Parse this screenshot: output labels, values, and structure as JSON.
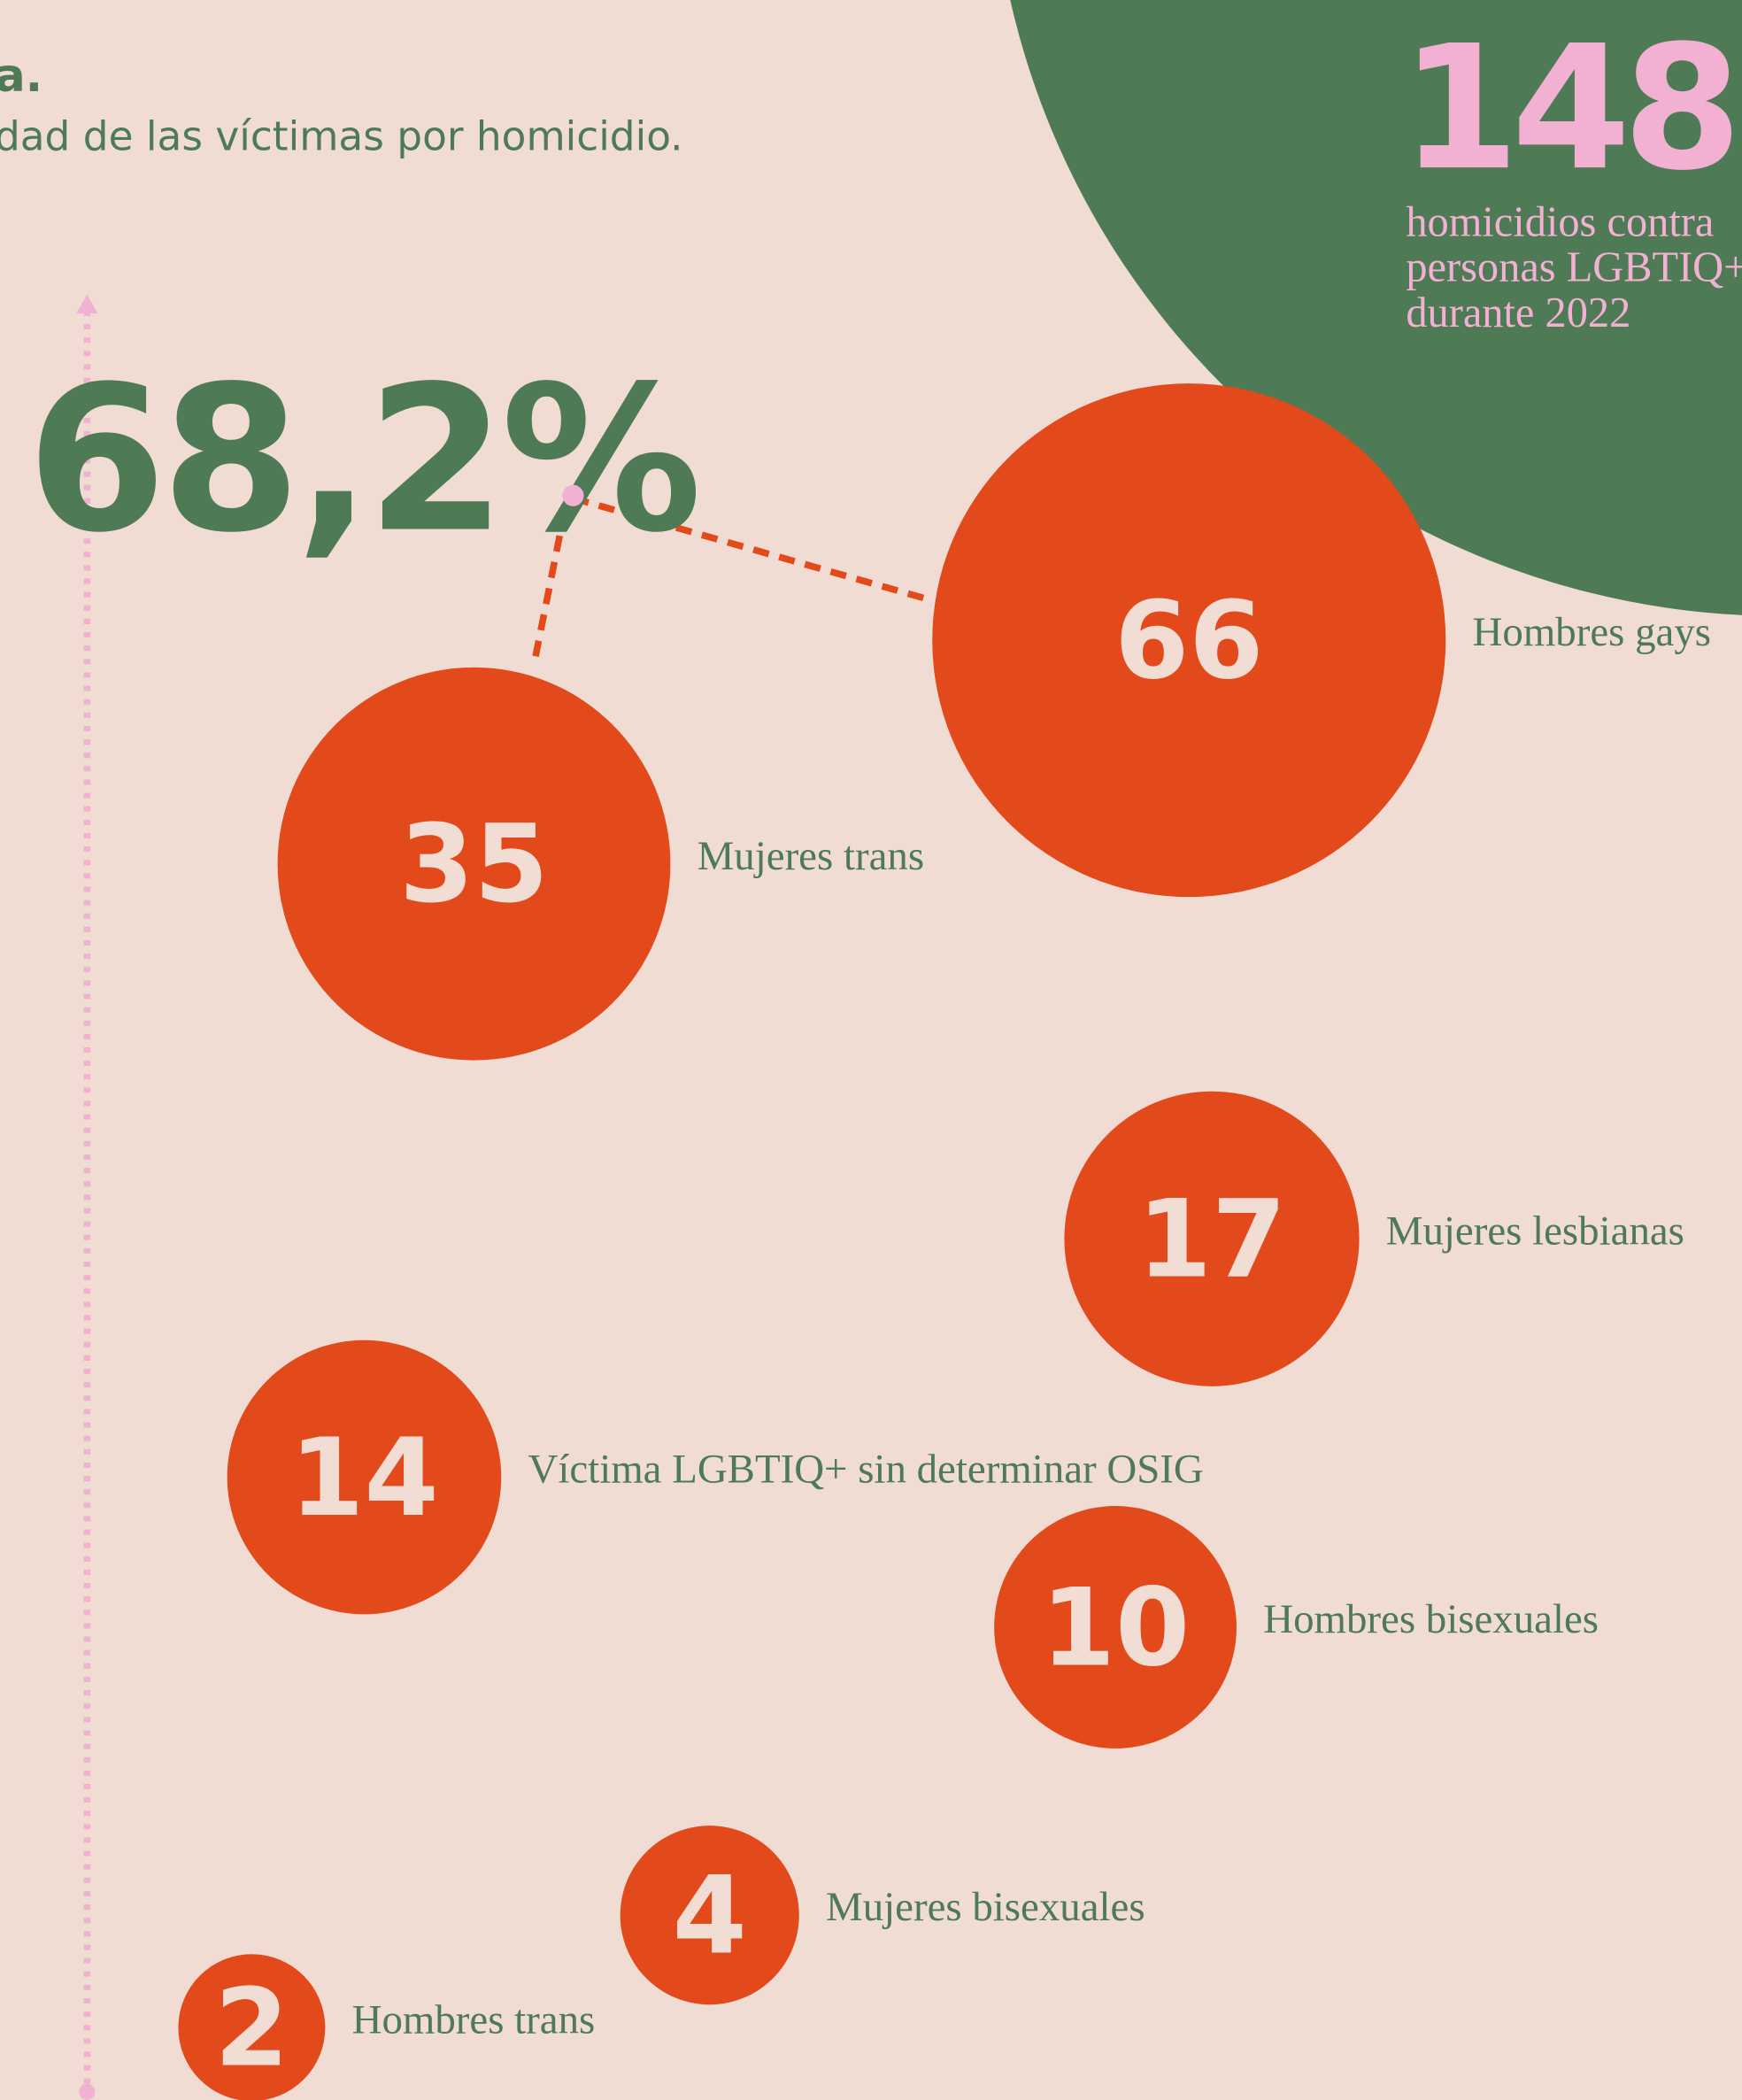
{
  "header": {
    "title": "a.",
    "subtitle": "dad de las víctimas por homicidio."
  },
  "total": {
    "value": "148",
    "lines": [
      "homicidios contra",
      "personas LGBTIQ+",
      "durante 2022"
    ]
  },
  "share": "68,2%",
  "bubbles": [
    {
      "label": "Hombres gays",
      "value": 66
    },
    {
      "label": "Mujeres trans",
      "value": 35
    },
    {
      "label": "Mujeres lesbianas",
      "value": 17
    },
    {
      "label": "Víctima LGBTIQ+ sin determinar OSIG",
      "value": 14
    },
    {
      "label": "Hombres bisexuales",
      "value": 10
    },
    {
      "label": "Mujeres bisexuales",
      "value": 4
    },
    {
      "label": "Hombres trans",
      "value": 2
    }
  ]
}
